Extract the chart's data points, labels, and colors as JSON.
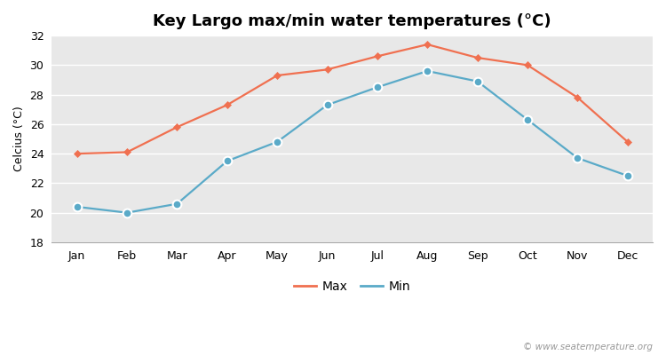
{
  "title": "Key Largo max/min water temperatures (°C)",
  "ylabel": "Celcius (°C)",
  "months": [
    "Jan",
    "Feb",
    "Mar",
    "Apr",
    "May",
    "Jun",
    "Jul",
    "Aug",
    "Sep",
    "Oct",
    "Nov",
    "Dec"
  ],
  "max_temps": [
    24.0,
    24.1,
    25.8,
    27.3,
    29.3,
    29.7,
    30.6,
    31.4,
    30.5,
    30.0,
    27.8,
    24.8
  ],
  "min_temps": [
    20.4,
    20.0,
    20.6,
    23.5,
    24.8,
    27.3,
    28.5,
    29.6,
    28.9,
    26.3,
    23.7,
    22.5
  ],
  "max_color": "#f07050",
  "min_color": "#5aaac8",
  "ylim": [
    18,
    32
  ],
  "yticks": [
    18,
    20,
    22,
    24,
    26,
    28,
    30,
    32
  ],
  "bg_color": "#e8e8e8",
  "plot_bg_color": "#e8e8e8",
  "grid_color": "#ffffff",
  "watermark": "© www.seatemperature.org",
  "legend_max": "Max",
  "legend_min": "Min",
  "title_fontsize": 13,
  "tick_fontsize": 9,
  "ylabel_fontsize": 9
}
